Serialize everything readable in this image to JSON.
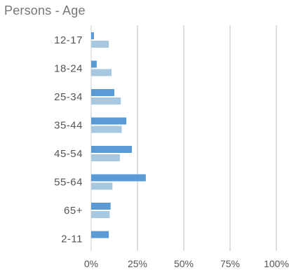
{
  "chart_data": {
    "type": "bar",
    "orientation": "horizontal",
    "title": "Persons - Age",
    "categories": [
      "12-17",
      "18-24",
      "25-34",
      "35-44",
      "45-54",
      "55-64",
      "65+",
      "2-11"
    ],
    "series": [
      {
        "values": [
          1.5,
          3,
          12.5,
          19,
          22,
          29.5,
          10.5,
          9.5
        ]
      },
      {
        "values": [
          9.5,
          11,
          16,
          16.5,
          15.5,
          11.5,
          10,
          null
        ]
      }
    ],
    "xlim": [
      0,
      100
    ],
    "xticks": [
      "0%",
      "25%",
      "50%",
      "75%",
      "100%"
    ],
    "grid": true,
    "colors": [
      "#5b9bd5",
      "#a8c8e0"
    ]
  }
}
